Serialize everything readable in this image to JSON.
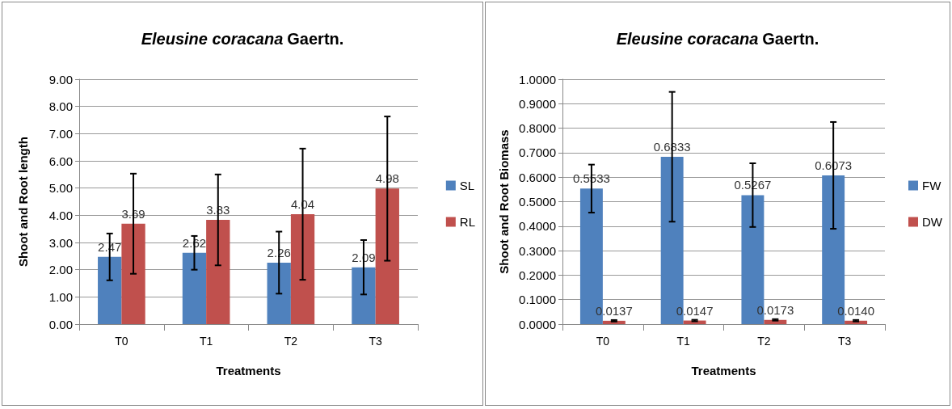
{
  "chart_data": [
    {
      "type": "bar",
      "title": "Eleusine coracana Gaertn.",
      "xlabel": "Treatments",
      "ylabel": "Shoot and Root length",
      "categories": [
        "T0",
        "T1",
        "T2",
        "T3"
      ],
      "series": [
        {
          "name": "SL",
          "color": "#4f81bd",
          "values": [
            2.47,
            2.62,
            2.26,
            2.09
          ],
          "errors": [
            0.86,
            0.62,
            1.14,
            1.0
          ]
        },
        {
          "name": "RL",
          "color": "#c0504d",
          "values": [
            3.69,
            3.83,
            4.04,
            4.98
          ],
          "errors": [
            1.84,
            1.67,
            2.41,
            2.65
          ]
        }
      ],
      "ylim": [
        0,
        9
      ],
      "yticks": [
        {
          "value": 0,
          "label": "0.00"
        },
        {
          "value": 1,
          "label": "1.00"
        },
        {
          "value": 2,
          "label": "2.00"
        },
        {
          "value": 3,
          "label": "3.00"
        },
        {
          "value": 4,
          "label": "4.00"
        },
        {
          "value": 5,
          "label": "5.00"
        },
        {
          "value": 6,
          "label": "6.00"
        },
        {
          "value": 7,
          "label": "7.00"
        },
        {
          "value": 8,
          "label": "8.00"
        },
        {
          "value": 9,
          "label": "9.00"
        }
      ],
      "grid": "y",
      "legend": "right",
      "data_labels": true
    },
    {
      "type": "bar",
      "title": "Eleusine coracana Gaertn.",
      "xlabel": "Treatments",
      "ylabel": "Shoot and Root Biomass",
      "categories": [
        "T0",
        "T1",
        "T2",
        "T3"
      ],
      "series": [
        {
          "name": "FW",
          "color": "#4f81bd",
          "values": [
            0.5533,
            0.6833,
            0.5267,
            0.6073
          ],
          "errors": [
            0.098,
            0.265,
            0.13,
            0.218
          ],
          "value_labels": [
            "0.5533",
            "0.6833",
            "0.5267",
            "0.6073"
          ]
        },
        {
          "name": "DW",
          "color": "#c0504d",
          "values": [
            0.0137,
            0.0147,
            0.0173,
            0.014
          ],
          "errors": [
            0.003,
            0.003,
            0.003,
            0.003
          ],
          "value_labels": [
            "0.0137",
            "0.0147",
            "0.0173",
            "0.0140"
          ]
        }
      ],
      "ylim": [
        0,
        1
      ],
      "yticks": [
        {
          "value": 0,
          "label": "0.0000"
        },
        {
          "value": 0.1,
          "label": "0.1000"
        },
        {
          "value": 0.2,
          "label": "0.2000"
        },
        {
          "value": 0.3,
          "label": "0.3000"
        },
        {
          "value": 0.4,
          "label": "0.4000"
        },
        {
          "value": 0.5,
          "label": "0.5000"
        },
        {
          "value": 0.6,
          "label": "0.6000"
        },
        {
          "value": 0.7,
          "label": "0.7000"
        },
        {
          "value": 0.8,
          "label": "0.8000"
        },
        {
          "value": 0.9,
          "label": "0.9000"
        },
        {
          "value": 1,
          "label": "1.0000"
        }
      ],
      "grid": "y",
      "legend": "right"
    }
  ]
}
